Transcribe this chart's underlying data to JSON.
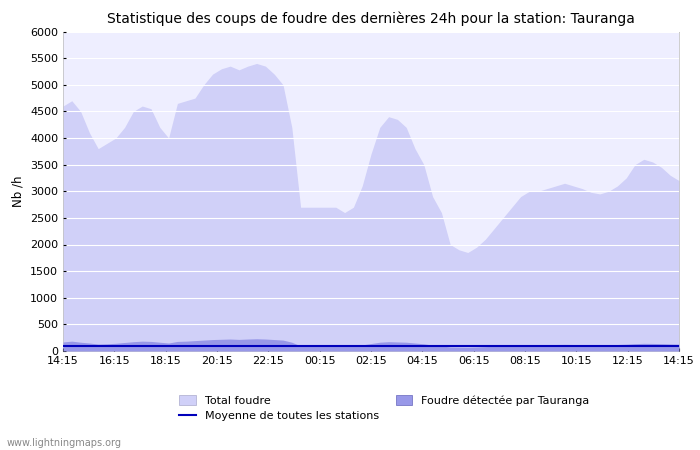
{
  "title": "Statistique des coups de foudre des dernières 24h pour la station: Tauranga",
  "ylabel": "Nb /h",
  "ylim": [
    0,
    6000
  ],
  "yticks": [
    0,
    500,
    1000,
    1500,
    2000,
    2500,
    3000,
    3500,
    4000,
    4500,
    5000,
    5500,
    6000
  ],
  "xtick_labels": [
    "14:15",
    "16:15",
    "18:15",
    "20:15",
    "22:15",
    "00:15",
    "02:15",
    "04:15",
    "06:15",
    "08:15",
    "10:15",
    "12:15",
    "14:15"
  ],
  "background_color": "#ffffff",
  "plot_bg_color": "#eeeeff",
  "grid_color": "#ffffff",
  "fill_total_color": "#d0d0f8",
  "fill_detected_color": "#9898e8",
  "line_mean_color": "#0000bb",
  "watermark": "www.lightningmaps.org",
  "total_foudre": [
    4600,
    4700,
    4500,
    4100,
    3800,
    3900,
    4000,
    4200,
    4500,
    4600,
    4550,
    4200,
    4000,
    4650,
    4700,
    4750,
    5000,
    5200,
    5300,
    5350,
    5280,
    5350,
    5400,
    5350,
    5200,
    5000,
    4200,
    2700,
    2700,
    2700,
    2700,
    2700,
    2600,
    2700,
    3100,
    3700,
    4200,
    4400,
    4350,
    4200,
    3800,
    3500,
    2900,
    2600,
    2000,
    1900,
    1850,
    1950,
    2100,
    2300,
    2500,
    2700,
    2900,
    3000,
    3000,
    3050,
    3100,
    3150,
    3100,
    3050,
    2980,
    2950,
    3000,
    3100,
    3250,
    3500,
    3600,
    3550,
    3450,
    3300,
    3200
  ],
  "detected_foudre": [
    170,
    185,
    165,
    150,
    130,
    135,
    145,
    160,
    175,
    185,
    180,
    165,
    150,
    180,
    185,
    195,
    205,
    215,
    220,
    225,
    218,
    225,
    230,
    225,
    215,
    205,
    165,
    95,
    95,
    95,
    95,
    95,
    90,
    95,
    115,
    140,
    165,
    175,
    170,
    165,
    150,
    135,
    110,
    95,
    75,
    72,
    70,
    75,
    82,
    90,
    98,
    105,
    112,
    118,
    118,
    120,
    122,
    124,
    122,
    120,
    116,
    114,
    118,
    122,
    128,
    138,
    144,
    142,
    138,
    132,
    128
  ],
  "mean_stations": [
    100,
    100,
    100,
    100,
    100,
    100,
    100,
    100,
    100,
    100,
    100,
    100,
    100,
    100,
    100,
    100,
    100,
    100,
    100,
    100,
    100,
    100,
    100,
    100,
    100,
    100,
    100,
    100,
    100,
    100,
    100,
    100,
    100,
    100,
    100,
    100,
    100,
    100,
    100,
    100,
    100,
    100,
    100,
    100,
    100,
    100,
    100,
    100,
    100,
    100,
    100,
    100,
    100,
    100,
    100,
    100,
    100,
    100,
    100,
    100,
    100,
    100,
    100,
    100,
    100,
    100,
    100,
    100,
    100,
    100,
    100
  ]
}
